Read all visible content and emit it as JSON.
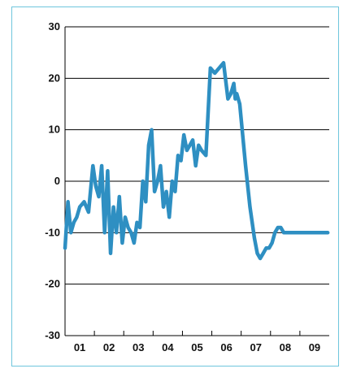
{
  "frame_color": "#6fc6dc",
  "chart_data": {
    "type": "line",
    "title": "",
    "xlabel": "",
    "ylabel": "",
    "ylim": [
      -30,
      30
    ],
    "xlim": [
      2000.5,
      2009.5
    ],
    "y_ticks": [
      30,
      20,
      10,
      0,
      -10,
      -20,
      -30
    ],
    "y_tick_labels": [
      "30",
      "20",
      "10",
      "0",
      "-10",
      "-20",
      "-30"
    ],
    "x_ticks": [
      2001,
      2002,
      2003,
      2004,
      2005,
      2006,
      2007,
      2008,
      2009
    ],
    "x_tick_labels": [
      "01",
      "02",
      "03",
      "04",
      "05",
      "06",
      "07",
      "08",
      "09"
    ],
    "grid": "horizontal",
    "line_color": "#2e8fc2",
    "gridline_color": "#000000",
    "series": [
      {
        "x": [
          2000.5,
          2000.6,
          2000.7,
          2000.8,
          2000.9,
          2001.0,
          2001.15,
          2001.3,
          2001.45,
          2001.55,
          2001.65,
          2001.75,
          2001.85,
          2001.95,
          2002.05,
          2002.15,
          2002.25,
          2002.35,
          2002.45,
          2002.55,
          2002.65,
          2002.75,
          2002.85,
          2002.95,
          2003.05,
          2003.15,
          2003.25,
          2003.35,
          2003.45,
          2003.55,
          2003.65,
          2003.75,
          2003.85,
          2003.95,
          2004.05,
          2004.15,
          2004.25,
          2004.35,
          2004.45,
          2004.55,
          2004.65,
          2004.75,
          2004.85,
          2004.95,
          2005.05,
          2005.15,
          2005.3,
          2005.45,
          2005.6,
          2005.75,
          2005.9,
          2006.05,
          2006.15,
          2006.25,
          2006.3,
          2006.35,
          2006.45,
          2006.55,
          2006.65,
          2006.8,
          2006.95,
          2007.05,
          2007.15,
          2007.25,
          2007.35,
          2007.45,
          2007.55,
          2007.65,
          2007.75,
          2007.85,
          2007.95,
          2008.05,
          2008.15,
          2008.3,
          2008.45,
          2008.6,
          2008.75,
          2008.9,
          2009.05,
          2009.15,
          2009.25,
          2009.35,
          2009.45
        ],
        "y": [
          -13,
          -4,
          -10,
          -8,
          -7,
          -5,
          -4,
          -6,
          3,
          -1,
          -3,
          3,
          -10,
          2,
          -14,
          -5,
          -10,
          -3,
          -12,
          -7,
          -9,
          -10,
          -12,
          -8,
          -9,
          0,
          -4,
          7,
          10,
          -2,
          0,
          3,
          -5,
          -2,
          -7,
          0,
          -2,
          5,
          4,
          9,
          6,
          7,
          8,
          3,
          7,
          6,
          5,
          22,
          21,
          22,
          23,
          16,
          17,
          19,
          16,
          17,
          15,
          9,
          3,
          -5,
          -11,
          -14,
          -15,
          -14,
          -13,
          -13,
          -12,
          -10,
          -9,
          -9,
          -10,
          -10,
          -10,
          -10,
          -10,
          -10,
          -10,
          -10,
          -10,
          -10,
          -10,
          -10,
          -10
        ]
      }
    ]
  }
}
